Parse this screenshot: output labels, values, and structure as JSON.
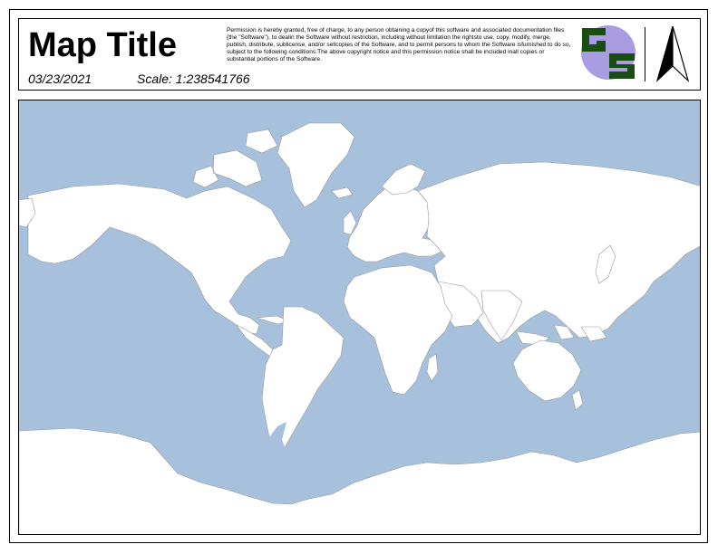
{
  "header": {
    "title": "Map Title",
    "date": "03/23/2021",
    "scale": "Scale: 1:238541766",
    "license": "Permission is hereby granted, free of charge, to any person obtaining a copyof this software and associated documentation files (the \"Software\"), to dealin the Software without restriction, including without limitation the rightsto use, copy, modify, merge, publish, distribute, sublicense, and/or sellcopies of the Software, and to permit persons to whom the Software isfurnished to do so, subject to the following conditions:The above copyright notice and this permission notice shall be included inall copies or substantial portions of the Software."
  },
  "logo": {
    "letters": "GS",
    "colors": {
      "green": "#1a4d14",
      "purple": "#a99ce0"
    }
  },
  "north_arrow": {
    "icon": "north-arrow-icon"
  },
  "map": {
    "projection": "Mercator",
    "colors": {
      "ocean": "#a7c0dc",
      "land": "#ffffff",
      "borders": "#999999"
    }
  }
}
